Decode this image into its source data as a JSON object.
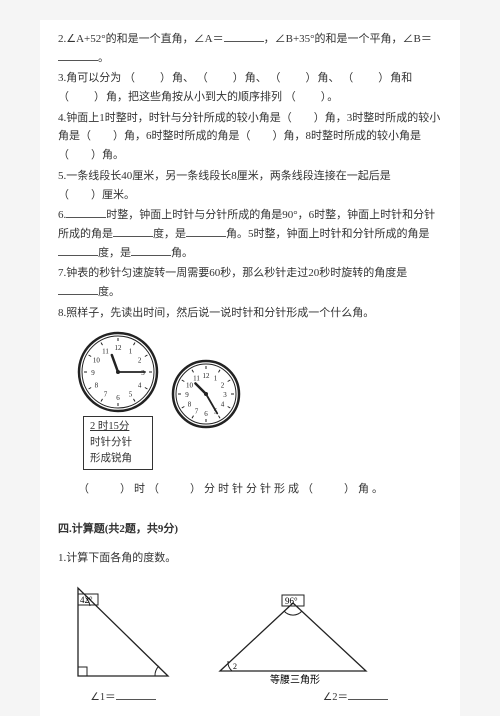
{
  "q2": {
    "text_a": "2.∠A+52°的和是一个直角，∠A＝",
    "text_b": "，∠B+35°的和是一个平角，∠B＝",
    "text_c": "。"
  },
  "q3": {
    "lead": "3.角可以分为",
    "p_open": "（",
    "p_close": "）",
    "unit_a": "角、",
    "unit_b": "角和",
    "tail_a": "角，把这些角按从小到大的顺序排列",
    "tail_b": "。"
  },
  "q4": {
    "text": "4.钟面上1时整时，时针与分针所成的较小角是（　　）角，3时整时所成的较小角是（　　）角，6时整时所成的角是（　　）角，8时整时所成的较小角是（　　）角。"
  },
  "q5": {
    "a": "5.一条线段长40厘米，另一条线段长8厘米，两条线段连接在一起后是",
    "b": "（　　）厘米。"
  },
  "q6": {
    "a": "6.",
    "b": "时整，钟面上时针与分针所成的角是90°，6时整，钟面上时针和分针所成的角是",
    "c": "度，是",
    "d": "角。5时整，钟面上时针和分针所成的角是",
    "e": "度，是",
    "f": "角。"
  },
  "q7": {
    "a": "7.钟表的秒针匀速旋转一周需要60秒，那么秒针走过20秒时旋转的角度是",
    "b": "度。"
  },
  "q8": {
    "text": "8.照样子，先读出时间，然后说一说时针和分针形成一个什么角。"
  },
  "clock1": {
    "type": "clock",
    "time_label": "2 时15分",
    "desc_line1": "时针分针",
    "desc_line2": "形成锐角",
    "numbers": [
      "12",
      "1",
      "2",
      "3",
      "4",
      "5",
      "6",
      "7",
      "8",
      "9",
      "10",
      "11"
    ],
    "hour_angle": -20,
    "minute_angle": 90,
    "face_bg": "#ffffff",
    "stroke": "#222",
    "radius": 36
  },
  "clock2": {
    "type": "clock",
    "numbers": [
      "12",
      "1",
      "2",
      "3",
      "4",
      "5",
      "6",
      "7",
      "8",
      "9",
      "10",
      "11"
    ],
    "hour_angle": 315,
    "minute_angle": 150,
    "face_bg": "#ffffff",
    "stroke": "#222",
    "radius": 30
  },
  "answer_line": {
    "a": "（　　）时（　　）分时针分针形成（　　）角。"
  },
  "section4": {
    "title": "四.计算题(共2题，共9分)"
  },
  "calc1": {
    "text": "1.计算下面各角的度数。"
  },
  "triangle1": {
    "type": "triangle-right",
    "top_angle_label": "42°",
    "ans_label": "∠1＝",
    "stroke": "#222",
    "fill": "none"
  },
  "triangle2": {
    "type": "triangle-iso",
    "top_angle_label": "96°",
    "caption": "等腰三角形",
    "ans_label": "∠2＝",
    "angle_mark": "2",
    "stroke": "#222",
    "fill": "none"
  }
}
